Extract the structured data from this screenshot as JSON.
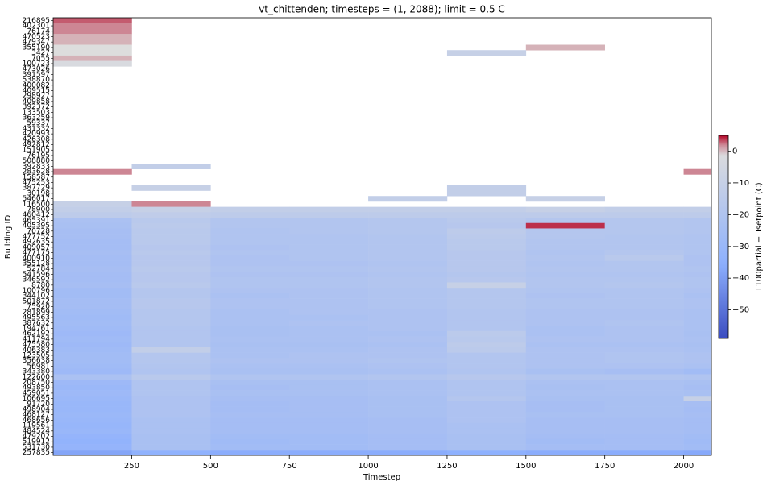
{
  "chart_data": {
    "type": "heatmap",
    "title": "vt_chittenden; timesteps = (1, 2088); limit = 0.5 C",
    "xlabel": "Timestep",
    "ylabel": "Building ID",
    "rows": [
      "216895",
      "402301",
      "76174",
      "470523",
      "479347",
      "355190",
      "3427",
      "7055",
      "100723",
      "473026",
      "391597",
      "538870",
      "400082",
      "409515",
      "298927",
      "409858",
      "392372",
      "133503",
      "363259",
      "59337",
      "431332",
      "420993",
      "426308",
      "492812",
      "151905",
      "76195",
      "508880",
      "392833",
      "283628",
      "158587",
      "475253",
      "387729",
      "30198",
      "546017",
      "116500",
      "78900",
      "460412",
      "465391",
      "405395",
      "70728",
      "477752",
      "492635",
      "409057",
      "477175",
      "400910",
      "355128",
      "52784",
      "541596",
      "346592",
      "8780",
      "100796",
      "344102",
      "501872",
      "75920",
      "281899",
      "495563",
      "387632",
      "194761",
      "462192",
      "411794",
      "475580",
      "406383",
      "123505",
      "356638",
      "56981",
      "343380",
      "122600",
      "208750",
      "493850",
      "459051",
      "106695",
      "91720",
      "498904",
      "468127",
      "468656",
      "119561",
      "484524",
      "479202",
      "519912",
      "531730",
      "257835"
    ],
    "bins": [
      1,
      250,
      500,
      750,
      1000,
      1250,
      1500,
      1750,
      2000,
      2088
    ],
    "values": [
      [
        3,
        null,
        null,
        null,
        null,
        null,
        null,
        null,
        null
      ],
      [
        2,
        null,
        null,
        null,
        null,
        null,
        null,
        null,
        null
      ],
      [
        2,
        null,
        null,
        null,
        null,
        null,
        null,
        null,
        null
      ],
      [
        1,
        null,
        null,
        null,
        null,
        null,
        null,
        null,
        null
      ],
      [
        1,
        null,
        null,
        null,
        null,
        null,
        null,
        null,
        null
      ],
      [
        0,
        null,
        null,
        null,
        null,
        null,
        1,
        null,
        null
      ],
      [
        0,
        null,
        null,
        null,
        null,
        -10,
        null,
        null,
        null
      ],
      [
        1,
        null,
        null,
        null,
        null,
        null,
        null,
        null,
        null
      ],
      [
        -2,
        null,
        null,
        null,
        null,
        null,
        null,
        null,
        null
      ],
      [
        null,
        null,
        null,
        null,
        null,
        null,
        null,
        null,
        null
      ],
      [
        null,
        null,
        null,
        null,
        null,
        null,
        null,
        null,
        null
      ],
      [
        null,
        null,
        null,
        null,
        null,
        null,
        null,
        null,
        null
      ],
      [
        null,
        null,
        null,
        null,
        null,
        null,
        null,
        null,
        null
      ],
      [
        null,
        null,
        null,
        null,
        null,
        null,
        null,
        null,
        null
      ],
      [
        null,
        null,
        null,
        null,
        null,
        null,
        null,
        null,
        null
      ],
      [
        null,
        null,
        null,
        null,
        null,
        null,
        null,
        null,
        null
      ],
      [
        null,
        null,
        null,
        null,
        null,
        null,
        null,
        null,
        null
      ],
      [
        null,
        null,
        null,
        null,
        null,
        null,
        null,
        null,
        null
      ],
      [
        null,
        null,
        null,
        null,
        null,
        null,
        null,
        null,
        null
      ],
      [
        null,
        null,
        null,
        null,
        null,
        null,
        null,
        null,
        null
      ],
      [
        null,
        null,
        null,
        null,
        null,
        null,
        null,
        null,
        null
      ],
      [
        null,
        null,
        null,
        null,
        null,
        null,
        null,
        null,
        null
      ],
      [
        null,
        null,
        null,
        null,
        null,
        null,
        null,
        null,
        null
      ],
      [
        null,
        null,
        null,
        null,
        null,
        null,
        null,
        null,
        null
      ],
      [
        null,
        null,
        null,
        null,
        null,
        null,
        null,
        null,
        null
      ],
      [
        null,
        null,
        null,
        null,
        null,
        null,
        null,
        null,
        null
      ],
      [
        null,
        null,
        null,
        null,
        null,
        null,
        null,
        null,
        null
      ],
      [
        null,
        -12,
        null,
        null,
        null,
        null,
        null,
        null,
        null
      ],
      [
        2,
        null,
        null,
        null,
        null,
        null,
        null,
        null,
        2
      ],
      [
        null,
        null,
        null,
        null,
        null,
        null,
        null,
        null,
        null
      ],
      [
        null,
        null,
        null,
        null,
        null,
        null,
        null,
        null,
        null
      ],
      [
        null,
        -10,
        null,
        null,
        null,
        -12,
        null,
        null,
        null
      ],
      [
        null,
        null,
        null,
        null,
        null,
        -12,
        null,
        null,
        null
      ],
      [
        null,
        null,
        null,
        null,
        -12,
        null,
        -10,
        null,
        null
      ],
      [
        -10,
        2,
        null,
        null,
        null,
        null,
        null,
        null,
        null
      ],
      [
        -12,
        -10,
        -12,
        -12,
        -12,
        -12,
        -10,
        -12,
        -12
      ],
      [
        -14,
        -13,
        -14,
        -14,
        -14,
        -14,
        -14,
        -14,
        -14
      ],
      [
        -22,
        -16,
        -19,
        -19,
        -18,
        -16,
        -18,
        -18,
        -19
      ],
      [
        -23,
        -15,
        -19,
        -19,
        -18,
        -17,
        4,
        -18,
        -19
      ],
      [
        -24,
        -16,
        -20,
        -19,
        -18,
        -14,
        -18,
        -18,
        -19
      ],
      [
        -24,
        -16,
        -20,
        -20,
        -19,
        -15,
        -18,
        -19,
        -20
      ],
      [
        -25,
        -16,
        -20,
        -20,
        -19,
        -16,
        -19,
        -19,
        -20
      ],
      [
        -25,
        -17,
        -21,
        -20,
        -19,
        -16,
        -19,
        -19,
        -20
      ],
      [
        -24,
        -16,
        -20,
        -20,
        -19,
        -17,
        -20,
        -18,
        -20
      ],
      [
        -25,
        -17,
        -21,
        -20,
        -19,
        -17,
        -19,
        -16,
        -21
      ],
      [
        -25,
        -17,
        -21,
        -21,
        -20,
        -17,
        -20,
        -19,
        -21
      ],
      [
        -24,
        -16,
        -20,
        -20,
        -19,
        -17,
        -19,
        -19,
        -20
      ],
      [
        -25,
        -17,
        -21,
        -21,
        -20,
        -18,
        -20,
        -20,
        -21
      ],
      [
        -25,
        -17,
        -20,
        -20,
        -19,
        -17,
        -19,
        -19,
        -20
      ],
      [
        -24,
        -16,
        -20,
        -20,
        -19,
        -10,
        -19,
        -18,
        -20
      ],
      [
        -26,
        -18,
        -21,
        -21,
        -20,
        -18,
        -20,
        -20,
        -21
      ],
      [
        -26,
        -18,
        -22,
        -21,
        -20,
        -18,
        -21,
        -20,
        -22
      ],
      [
        -25,
        -17,
        -21,
        -21,
        -20,
        -18,
        -20,
        -20,
        -21
      ],
      [
        -25,
        -17,
        -21,
        -21,
        -20,
        -18,
        -20,
        -20,
        -21
      ],
      [
        -26,
        -18,
        -22,
        -21,
        -21,
        -19,
        -21,
        -21,
        -22
      ],
      [
        -27,
        -18,
        -22,
        -22,
        -21,
        -19,
        -21,
        -21,
        -22
      ],
      [
        -26,
        -18,
        -22,
        -21,
        -21,
        -19,
        -21,
        -20,
        -22
      ],
      [
        -27,
        -19,
        -23,
        -22,
        -21,
        -19,
        -22,
        -21,
        -22
      ],
      [
        -28,
        -19,
        -23,
        -22,
        -22,
        -15,
        -22,
        -21,
        -23
      ],
      [
        -27,
        -19,
        -22,
        -22,
        -21,
        -16,
        -21,
        -21,
        -22
      ],
      [
        -28,
        -19,
        -23,
        -23,
        -22,
        -14,
        -22,
        -22,
        -23
      ],
      [
        -27,
        -12,
        -22,
        -22,
        -21,
        -15,
        -21,
        -21,
        -22
      ],
      [
        -26,
        -18,
        -22,
        -21,
        -21,
        -19,
        -21,
        -20,
        -21
      ],
      [
        -26,
        -18,
        -21,
        -21,
        -20,
        -19,
        -21,
        -20,
        -21
      ],
      [
        -27,
        -19,
        -22,
        -22,
        -21,
        -19,
        -21,
        -21,
        -22
      ],
      [
        -28,
        -20,
        -23,
        -23,
        -22,
        -20,
        -23,
        -24,
        -26
      ],
      [
        -22,
        -16,
        -20,
        -20,
        -19,
        -17,
        -19,
        -19,
        -20
      ],
      [
        -28,
        -20,
        -23,
        -23,
        -22,
        -20,
        -22,
        -22,
        -23
      ],
      [
        -29,
        -20,
        -24,
        -23,
        -22,
        -20,
        -23,
        -22,
        -24
      ],
      [
        -28,
        -20,
        -23,
        -23,
        -22,
        -20,
        -22,
        -22,
        -23
      ],
      [
        -29,
        -21,
        -24,
        -24,
        -23,
        -18,
        -23,
        -23,
        -10
      ],
      [
        -30,
        -21,
        -25,
        -24,
        -23,
        -21,
        -24,
        -23,
        -24
      ],
      [
        -30,
        -21,
        -25,
        -24,
        -23,
        -21,
        -24,
        -23,
        -25
      ],
      [
        -29,
        -21,
        -24,
        -24,
        -23,
        -21,
        -23,
        -23,
        -24
      ],
      [
        -30,
        -22,
        -25,
        -25,
        -24,
        -21,
        -24,
        -24,
        -25
      ],
      [
        -31,
        -22,
        -25,
        -25,
        -24,
        -22,
        -24,
        -24,
        -25
      ],
      [
        -30,
        -22,
        -25,
        -25,
        -24,
        -22,
        -24,
        -24,
        -25
      ],
      [
        -32,
        -23,
        -26,
        -26,
        -25,
        -23,
        -25,
        -25,
        -26
      ],
      [
        -33,
        -23,
        -27,
        -26,
        -25,
        -23,
        -26,
        -25,
        -27
      ],
      [
        -32,
        -23,
        -26,
        -26,
        -25,
        -23,
        -25,
        -25,
        -26
      ],
      [
        -38,
        -34,
        -36,
        -36,
        -36,
        -35,
        -36,
        -36,
        -37
      ]
    ],
    "xlim": [
      1,
      2088
    ],
    "xticks": [
      250,
      500,
      750,
      1000,
      1250,
      1500,
      1750,
      2000
    ],
    "colorbar": {
      "label": "T100partial − Tsetpoint (C)",
      "lim": [
        -59,
        5
      ],
      "ticks": [
        0,
        {
          "value": -10,
          "label": "−10"
        },
        {
          "value": -20,
          "label": "−20"
        },
        {
          "value": -30,
          "label": "−30"
        },
        {
          "value": -40,
          "label": "−40"
        },
        {
          "value": -50,
          "label": "−50"
        }
      ]
    }
  }
}
